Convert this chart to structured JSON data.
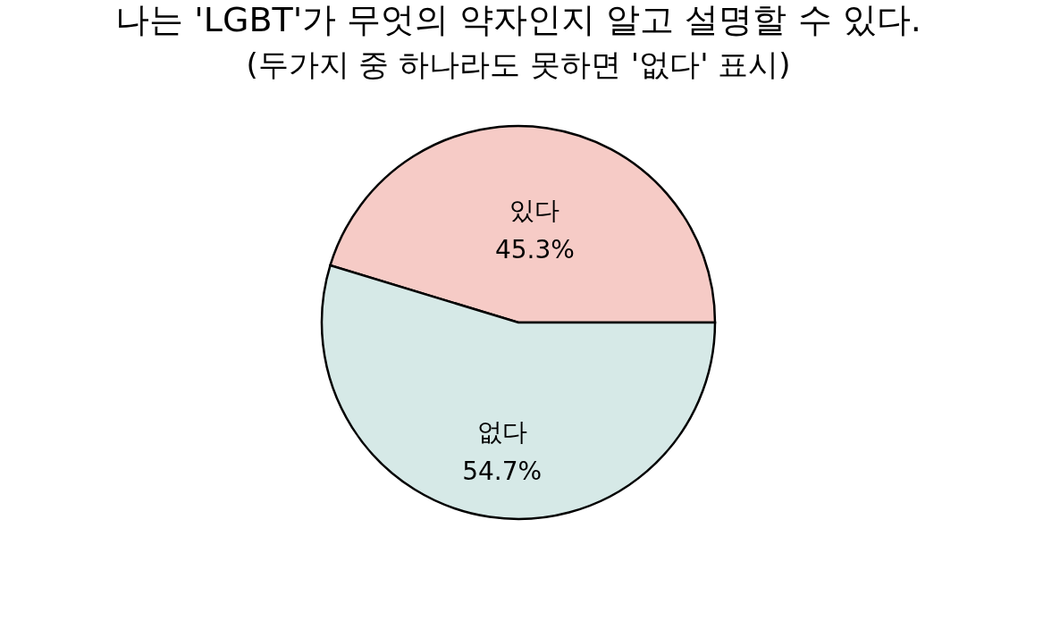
{
  "chart_data": {
    "type": "pie",
    "title": "나는 'LGBT'가 무엇의 약자인지 알고 설명할 수 있다.",
    "subtitle": "(두가지 중 하나라도 못하면 '없다' 표시)",
    "categories": [
      "있다",
      "없다"
    ],
    "values": [
      45.3,
      54.7
    ],
    "colors": [
      "#f6cbc6",
      "#d6e9e7"
    ],
    "value_labels": [
      "45.3%",
      "54.7%"
    ]
  }
}
